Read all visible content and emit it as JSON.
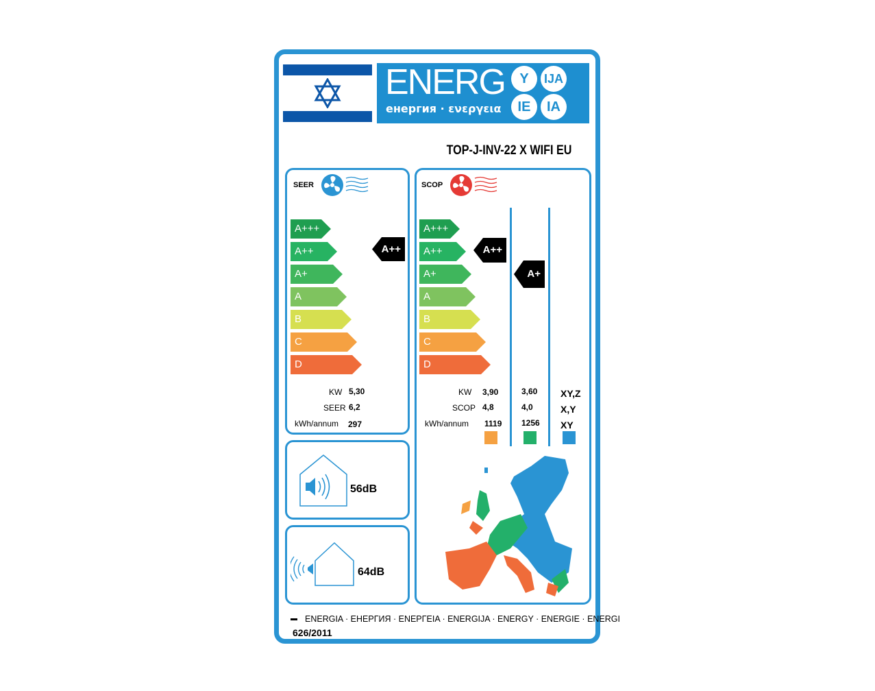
{
  "header": {
    "brand": "ENERG",
    "subtitle": "енергия · ενεργεια",
    "suffixes": [
      "Y",
      "IJA",
      "IE",
      "IA"
    ],
    "flag": "israel-flag",
    "model": "TOP-J-INV-22 X WIFI EU"
  },
  "colors": {
    "frame": "#2a94d3",
    "A+++": "#1f9e50",
    "A++": "#27b362",
    "A+": "#3fb65c",
    "A": "#7fc35f",
    "B": "#d6df50",
    "C": "#f5a142",
    "D": "#ef6c3a",
    "warm": "#f5a142",
    "average": "#23b06a",
    "cold": "#2a94d3"
  },
  "scale": [
    "A+++",
    "A++",
    "A+",
    "A",
    "B",
    "C",
    "D"
  ],
  "cooling": {
    "label": "SEER",
    "icon": "fan-cool-icon",
    "rating": "A++",
    "rows": [
      {
        "k": "KW",
        "v": "5,30"
      },
      {
        "k": "SEER",
        "v": "6,2"
      },
      {
        "k": "kWh/annum",
        "v": "297"
      }
    ]
  },
  "heating": {
    "label": "SCOP",
    "icon": "fan-heat-icon",
    "rating_warm": "A++",
    "rating_average": "A+",
    "row_labels": [
      "KW",
      "SCOP",
      "kWh/annum"
    ],
    "warm": [
      "3,90",
      "4,8",
      "1119"
    ],
    "average": [
      "3,60",
      "4,0",
      "1256"
    ],
    "cold": [
      "XY,Z",
      "X,Y",
      "XY"
    ]
  },
  "noise": {
    "indoor": "56dB",
    "outdoor": "64dB"
  },
  "footer": {
    "languages": "ENERGIA · ЕНЕРГИЯ · ΕΝΕΡΓΕΙΑ · ENERGIJA · ENERGY · ENERGIE · ENERGI",
    "regulation": "626/2011"
  }
}
